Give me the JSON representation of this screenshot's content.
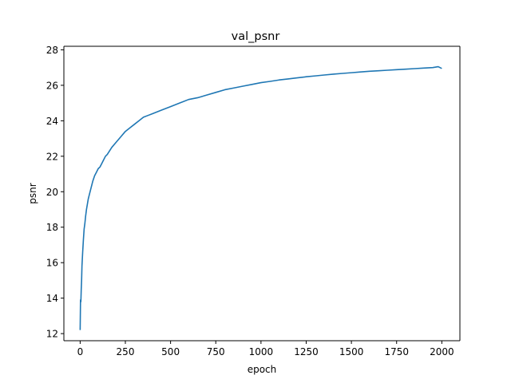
{
  "chart_data": {
    "type": "line",
    "title": "val_psnr",
    "xlabel": "epoch",
    "ylabel": "psnr",
    "xlim": [
      -90,
      2100
    ],
    "ylim": [
      11.6,
      28.2
    ],
    "xticks": [
      0,
      250,
      500,
      750,
      1000,
      1250,
      1500,
      1750,
      2000
    ],
    "xtick_labels": [
      "0",
      "250",
      "500",
      "750",
      "1000",
      "1250",
      "1500",
      "1750",
      "2000"
    ],
    "yticks": [
      12,
      14,
      16,
      18,
      20,
      22,
      24,
      26,
      28
    ],
    "ytick_labels": [
      "12",
      "14",
      "16",
      "18",
      "20",
      "22",
      "24",
      "26",
      "28"
    ],
    "grid": false,
    "legend": false,
    "series_color": "#1f77b4",
    "series": [
      {
        "x": [
          0,
          2,
          4,
          6,
          8,
          10,
          14,
          18,
          22,
          26,
          30,
          35,
          40,
          45,
          50,
          60,
          70,
          80,
          90,
          100,
          110,
          120,
          130,
          140,
          150,
          175,
          200,
          225,
          250,
          275,
          300,
          325,
          350,
          375,
          400,
          450,
          500,
          550,
          600,
          650,
          700,
          750,
          800,
          850,
          900,
          950,
          1000,
          1050,
          1100,
          1150,
          1200,
          1250,
          1300,
          1350,
          1400,
          1450,
          1500,
          1550,
          1600,
          1650,
          1700,
          1750,
          1800,
          1850,
          1900,
          1950,
          1980,
          2000
        ],
        "y": [
          12.2,
          13.9,
          13.8,
          14.5,
          15.0,
          15.8,
          16.6,
          17.3,
          17.9,
          18.2,
          18.6,
          19.0,
          19.3,
          19.6,
          19.8,
          20.2,
          20.6,
          20.9,
          21.1,
          21.3,
          21.4,
          21.6,
          21.8,
          22.0,
          22.1,
          22.5,
          22.8,
          23.1,
          23.4,
          23.6,
          23.8,
          24.0,
          24.2,
          24.3,
          24.4,
          24.6,
          24.8,
          25.0,
          25.2,
          25.3,
          25.45,
          25.6,
          25.75,
          25.85,
          25.95,
          26.05,
          26.15,
          26.22,
          26.3,
          26.36,
          26.42,
          26.48,
          26.53,
          26.58,
          26.63,
          26.67,
          26.71,
          26.75,
          26.79,
          26.82,
          26.85,
          26.88,
          26.91,
          26.94,
          26.97,
          27.0,
          27.05,
          26.95
        ]
      }
    ]
  }
}
